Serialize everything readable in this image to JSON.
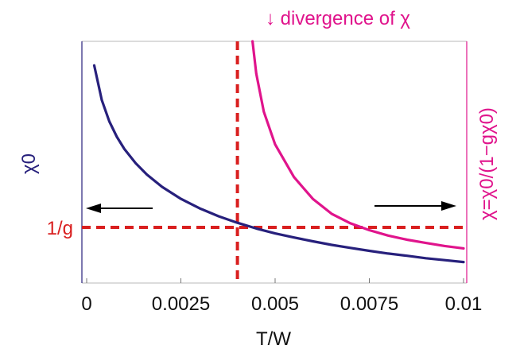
{
  "chart_data": {
    "type": "line",
    "title": "↓ divergence of χ",
    "xlabel": "T/W",
    "ylabel_left": "χ0",
    "ylabel_right": "χ=χ0/(1−gχ0)",
    "xlim": [
      0,
      0.01
    ],
    "x_ticks": [
      0,
      0.0025,
      0.005,
      0.0075,
      0.01
    ],
    "x_tick_labels": [
      "0",
      "0.0025",
      "0.005",
      "0.0075",
      "0.01"
    ],
    "grid": false,
    "hline_label": "1/g",
    "vline_x": 0.004,
    "series": [
      {
        "axis": "left",
        "x": [
          0.0002,
          0.0004,
          0.0006,
          0.0008,
          0.001,
          0.0013,
          0.0016,
          0.002,
          0.0025,
          0.003,
          0.0035,
          0.004,
          0.0045,
          0.005,
          0.0055,
          0.006,
          0.0065,
          0.007,
          0.0075,
          0.008,
          0.0085,
          0.009,
          0.0095,
          0.01
        ],
        "values": [
          0.97,
          0.843,
          0.765,
          0.708,
          0.663,
          0.611,
          0.569,
          0.524,
          0.48,
          0.445,
          0.416,
          0.392,
          0.371,
          0.353,
          0.338,
          0.324,
          0.311,
          0.3,
          0.289,
          0.279,
          0.271,
          0.262,
          0.255,
          0.248
        ]
      },
      {
        "axis": "right",
        "x": [
          0.0044,
          0.0045,
          0.0047,
          0.005,
          0.0055,
          0.006,
          0.0065,
          0.007,
          0.0075,
          0.008,
          0.0085,
          0.009,
          0.0095,
          0.01
        ],
        "values": [
          1.08,
          0.94,
          0.8,
          0.68,
          0.56,
          0.48,
          0.425,
          0.39,
          0.365,
          0.345,
          0.33,
          0.318,
          0.307,
          0.298
        ]
      }
    ]
  },
  "colors": {
    "chi0": "#27207c",
    "chi": "#e0148c",
    "reference": "#d91f1f",
    "frame_left": "#27207c",
    "frame_right": "#e0148c",
    "frame": "#b9b9b9",
    "arrow": "#000000"
  }
}
